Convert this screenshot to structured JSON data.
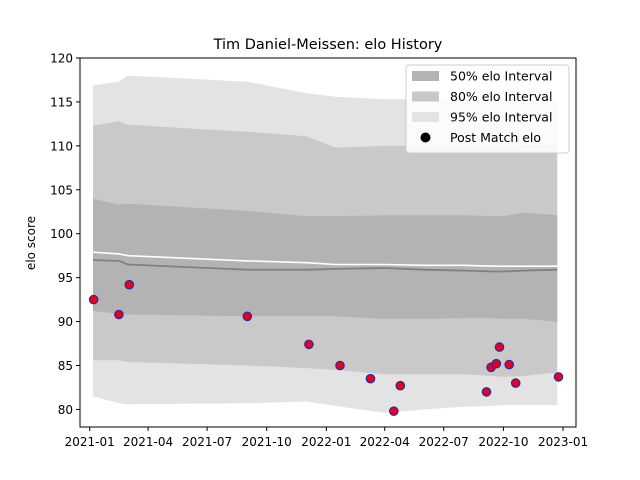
{
  "chart_data": {
    "type": "line",
    "title": "Tim Daniel-Meissen: elo History",
    "xlabel": "",
    "ylabel": "elo score",
    "xlim": [
      "2020-12-17",
      "2023-01-21"
    ],
    "ylim": [
      78,
      120
    ],
    "x_ticks": [
      "2021-01",
      "2021-04",
      "2021-07",
      "2021-10",
      "2022-01",
      "2022-04",
      "2022-07",
      "2022-10",
      "2023-01"
    ],
    "y_ticks": [
      80,
      85,
      90,
      95,
      100,
      105,
      110,
      115,
      120
    ],
    "grid": false,
    "legend_position": "top-right",
    "colors": {
      "band_50": "#b3b3b3",
      "band_80": "#c9c9c9",
      "band_95": "#e3e3e3",
      "median_line": "#808080",
      "white_line": "#ffffff",
      "point_fill": "#e8001c",
      "point_edge": "#2a2aa0"
    },
    "legend": [
      {
        "label": "50% elo Interval",
        "marker": "patch",
        "color": "#b3b3b3"
      },
      {
        "label": "80% elo Interval",
        "marker": "patch",
        "color": "#c9c9c9"
      },
      {
        "label": "95% elo Interval",
        "marker": "patch",
        "color": "#e3e3e3"
      },
      {
        "label": "Post Match elo",
        "marker": "circle",
        "color": "#000000"
      }
    ],
    "bands": {
      "x": [
        "2021-01-06",
        "2021-02-15",
        "2021-03-01",
        "2021-09-01",
        "2021-12-01",
        "2022-01-15",
        "2022-04-01",
        "2022-06-01",
        "2022-08-01",
        "2022-09-15",
        "2022-10-01",
        "2022-11-01",
        "2022-12-23"
      ],
      "p95_upper": [
        116.9,
        117.3,
        118.0,
        117.3,
        116.0,
        115.6,
        115.3,
        115.3,
        115.3,
        115.3,
        115.3,
        115.3,
        115.3
      ],
      "p80_upper": [
        112.3,
        112.8,
        112.4,
        111.6,
        111.1,
        109.8,
        110.0,
        110.0,
        110.0,
        110.1,
        110.0,
        110.1,
        110.1
      ],
      "p50_upper": [
        104.0,
        103.3,
        103.4,
        102.6,
        102.0,
        102.0,
        102.1,
        102.1,
        102.1,
        102.0,
        102.0,
        102.4,
        102.1
      ],
      "p50_lower": [
        91.2,
        90.9,
        90.8,
        90.6,
        90.6,
        90.6,
        90.3,
        90.3,
        90.4,
        90.4,
        90.3,
        90.3,
        90.0
      ],
      "p80_lower": [
        85.6,
        85.6,
        85.4,
        85.0,
        84.7,
        84.5,
        84.0,
        84.0,
        84.0,
        83.8,
        83.7,
        83.8,
        84.2
      ],
      "p95_lower": [
        81.5,
        80.7,
        80.6,
        80.7,
        80.9,
        80.4,
        79.6,
        80.0,
        80.3,
        80.4,
        80.5,
        80.5,
        80.5
      ]
    },
    "series": [
      {
        "x": [
          "2021-01-06",
          "2021-02-15",
          "2021-03-01",
          "2021-06-01",
          "2021-09-01",
          "2021-12-01",
          "2022-01-15",
          "2022-04-01",
          "2022-06-01",
          "2022-08-01",
          "2022-09-15",
          "2022-10-01",
          "2022-11-01",
          "2022-12-23"
        ],
        "values": [
          97.0,
          96.9,
          96.5,
          96.2,
          95.9,
          95.9,
          96.0,
          96.1,
          95.9,
          95.8,
          95.7,
          95.7,
          95.8,
          95.9
        ],
        "style": "median"
      },
      {
        "x": [
          "2021-01-06",
          "2021-02-15",
          "2021-03-01",
          "2021-06-01",
          "2021-09-01",
          "2021-12-01",
          "2022-01-15",
          "2022-04-01",
          "2022-06-01",
          "2022-08-01",
          "2022-09-15",
          "2022-10-01",
          "2022-11-01",
          "2022-12-23"
        ],
        "values": [
          97.9,
          97.7,
          97.5,
          97.2,
          96.9,
          96.7,
          96.5,
          96.5,
          96.4,
          96.4,
          96.3,
          96.3,
          96.3,
          96.3
        ],
        "style": "white"
      },
      {
        "name": "Post Match elo",
        "style": "points",
        "x": [
          "2021-01-07",
          "2021-02-15",
          "2021-03-03",
          "2021-09-01",
          "2021-12-05",
          "2022-01-22",
          "2022-03-10",
          "2022-04-15",
          "2022-04-25",
          "2022-09-05",
          "2022-09-12",
          "2022-09-20",
          "2022-09-25",
          "2022-10-10",
          "2022-10-20",
          "2022-12-25"
        ],
        "values": [
          92.5,
          90.8,
          94.2,
          90.6,
          87.4,
          85.0,
          83.5,
          79.8,
          82.7,
          82.0,
          84.8,
          85.2,
          87.1,
          85.1,
          83.0,
          83.7
        ]
      }
    ]
  }
}
